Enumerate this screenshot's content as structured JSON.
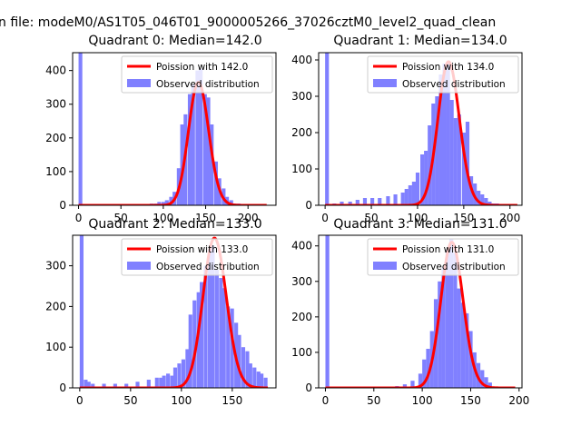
{
  "figure": {
    "suptitle": "n file: modeM0/AS1T05_046T01_9000005266_37026cztM0_level2_quad_clean"
  },
  "colors": {
    "poisson": "#ff0000",
    "observed": "#8080ff"
  },
  "chart_data": [
    {
      "type": "bar",
      "title": "Quadrant 0: Median=142.0",
      "xlim": [
        -7,
        233
      ],
      "ylim": [
        0,
        453
      ],
      "xticks": [
        0,
        50,
        100,
        150,
        200
      ],
      "yticks": [
        0,
        100,
        200,
        300,
        400
      ],
      "legend": {
        "placement": "upper-right",
        "entries": [
          "Poission with 142.0",
          "Observed distribution"
        ]
      },
      "series": [
        {
          "name": "Poission with 142.0",
          "kind": "line",
          "mean": 142.0,
          "peak": 365,
          "x_range": [
            0,
            222
          ]
        },
        {
          "name": "Observed distribution",
          "kind": "histogram",
          "bin_width": 4.44,
          "bin_start_x": [
            0,
            84,
            89,
            93,
            98,
            102,
            107,
            111,
            116,
            120,
            124,
            129,
            133,
            138,
            142,
            147,
            151,
            155,
            160,
            164,
            169,
            173,
            178,
            182,
            187
          ],
          "counts": [
            453,
            5,
            5,
            10,
            10,
            15,
            25,
            40,
            110,
            240,
            270,
            330,
            360,
            400,
            405,
            330,
            320,
            240,
            130,
            80,
            50,
            25,
            15,
            5,
            5
          ]
        }
      ]
    },
    {
      "type": "bar",
      "title": "Quadrant 1: Median=134.0",
      "xlim": [
        -7,
        213
      ],
      "ylim": [
        0,
        420
      ],
      "xticks": [
        0,
        50,
        100,
        150,
        200
      ],
      "yticks": [
        0,
        100,
        200,
        300,
        400
      ],
      "legend": {
        "placement": "upper-right",
        "entries": [
          "Poission with 134.0",
          "Observed distribution"
        ]
      },
      "series": [
        {
          "name": "Poission with 134.0",
          "kind": "line",
          "mean": 134.0,
          "peak": 395,
          "x_range": [
            0,
            208
          ]
        },
        {
          "name": "Observed distribution",
          "kind": "histogram",
          "bin_width": 4.1,
          "bin_start_x": [
            0,
            8,
            16,
            25,
            33,
            41,
            49,
            57,
            66,
            74,
            82,
            86,
            90,
            94,
            98,
            103,
            107,
            111,
            115,
            119,
            123,
            127,
            131,
            135,
            139,
            143,
            148,
            152,
            156,
            160,
            164,
            168,
            172,
            176,
            180,
            184
          ],
          "counts": [
            420,
            5,
            10,
            10,
            15,
            20,
            20,
            20,
            25,
            30,
            35,
            45,
            55,
            65,
            90,
            140,
            150,
            220,
            280,
            300,
            360,
            390,
            395,
            290,
            240,
            250,
            200,
            230,
            80,
            60,
            40,
            30,
            20,
            10,
            5,
            5
          ]
        }
      ]
    },
    {
      "type": "bar",
      "title": "Quadrant 2: Median=133.0",
      "xlim": [
        -7,
        193
      ],
      "ylim": [
        0,
        375
      ],
      "xticks": [
        0,
        50,
        100,
        150
      ],
      "yticks": [
        0,
        100,
        200,
        300
      ],
      "legend": {
        "placement": "upper-right",
        "entries": [
          "Poission with 133.0",
          "Observed distribution"
        ]
      },
      "series": [
        {
          "name": "Poission with 133.0",
          "kind": "line",
          "mean": 133.0,
          "peak": 368,
          "x_range": [
            0,
            185
          ]
        },
        {
          "name": "Observed distribution",
          "kind": "histogram",
          "bin_width": 3.7,
          "bin_start_x": [
            0,
            4,
            7,
            11,
            22,
            33,
            44,
            55,
            66,
            74,
            78,
            81,
            85,
            89,
            92,
            96,
            100,
            104,
            107,
            111,
            115,
            118,
            122,
            126,
            129,
            133,
            137,
            140,
            144,
            148,
            152,
            155,
            159,
            163,
            166,
            170,
            174,
            177,
            181
          ],
          "counts": [
            375,
            20,
            15,
            10,
            10,
            10,
            10,
            15,
            20,
            25,
            25,
            30,
            35,
            30,
            50,
            60,
            70,
            95,
            180,
            215,
            235,
            260,
            300,
            340,
            350,
            290,
            270,
            245,
            200,
            195,
            160,
            130,
            100,
            90,
            60,
            50,
            40,
            35,
            25
          ]
        }
      ]
    },
    {
      "type": "bar",
      "title": "Quadrant 3: Median=131.0",
      "xlim": [
        -7,
        203
      ],
      "ylim": [
        0,
        430
      ],
      "xticks": [
        0,
        50,
        100,
        150,
        200
      ],
      "yticks": [
        0,
        100,
        200,
        300,
        400
      ],
      "legend": {
        "placement": "upper-right",
        "entries": [
          "Poission with 131.0",
          "Observed distribution"
        ]
      },
      "series": [
        {
          "name": "Poission with 131.0",
          "kind": "line",
          "mean": 131.0,
          "peak": 410,
          "x_range": [
            0,
            196
          ]
        },
        {
          "name": "Observed distribution",
          "kind": "histogram",
          "bin_width": 4.0,
          "bin_start_x": [
            0,
            72,
            80,
            88,
            96,
            100,
            104,
            108,
            112,
            116,
            120,
            124,
            128,
            132,
            136,
            140,
            144,
            148,
            152,
            156,
            160,
            164,
            168
          ],
          "counts": [
            430,
            5,
            10,
            20,
            40,
            80,
            110,
            160,
            250,
            300,
            340,
            390,
            420,
            380,
            280,
            240,
            210,
            160,
            100,
            70,
            50,
            30,
            15
          ]
        }
      ]
    }
  ]
}
